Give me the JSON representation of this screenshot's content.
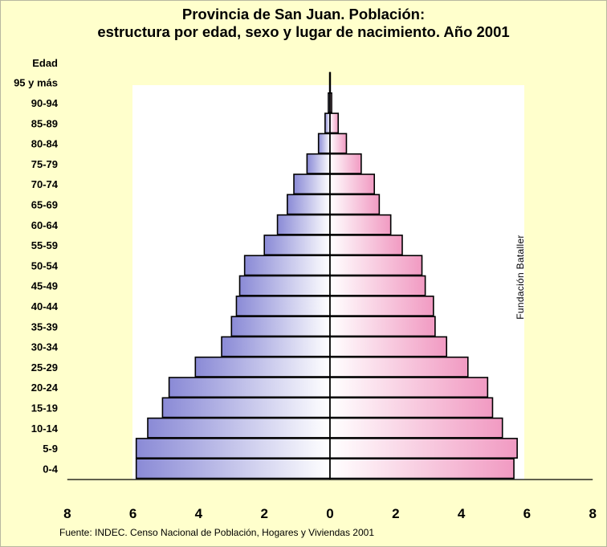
{
  "title": {
    "line1": "Provincia de San Juan. Población:",
    "line2": "estructura por edad, sexo y lugar de nacimiento. Año 2001"
  },
  "source": "Fuente: INDEC. Censo Nacional de Población, Hogares y Viviendas 2001",
  "watermark": "Fundación Bataller",
  "chart_data": {
    "type": "bar",
    "orientation": "horizontal-pyramid",
    "ylabel": "Edad",
    "categories": [
      "0-4",
      "5-9",
      "10-14",
      "15-19",
      "20-24",
      "25-29",
      "30-34",
      "35-39",
      "40-44",
      "45-49",
      "50-54",
      "55-59",
      "60-64",
      "65-69",
      "70-74",
      "75-79",
      "80-84",
      "85-89",
      "90-94",
      "95 y más"
    ],
    "series": [
      {
        "values": [
          5.9,
          5.9,
          5.55,
          5.1,
          4.9,
          4.1,
          3.3,
          3.0,
          2.85,
          2.75,
          2.6,
          2.0,
          1.6,
          1.3,
          1.1,
          0.7,
          0.35,
          0.15,
          0.05,
          0.01
        ],
        "color_left": "#8a8ad6",
        "color_right": "#ffffff"
      },
      {
        "values": [
          5.6,
          5.7,
          5.25,
          4.95,
          4.8,
          4.2,
          3.55,
          3.2,
          3.15,
          2.9,
          2.8,
          2.2,
          1.85,
          1.5,
          1.35,
          0.95,
          0.5,
          0.25,
          0.05,
          0.01
        ],
        "color_left": "#ffffff",
        "color_right": "#f19ac2"
      }
    ],
    "x_ticks": [
      "8",
      "6",
      "4",
      "2",
      "0",
      "2",
      "4",
      "6",
      "8"
    ],
    "xlim": [
      -8,
      8
    ],
    "grid": false,
    "background": "#ffffcc",
    "plot_background": "#ffffff"
  }
}
